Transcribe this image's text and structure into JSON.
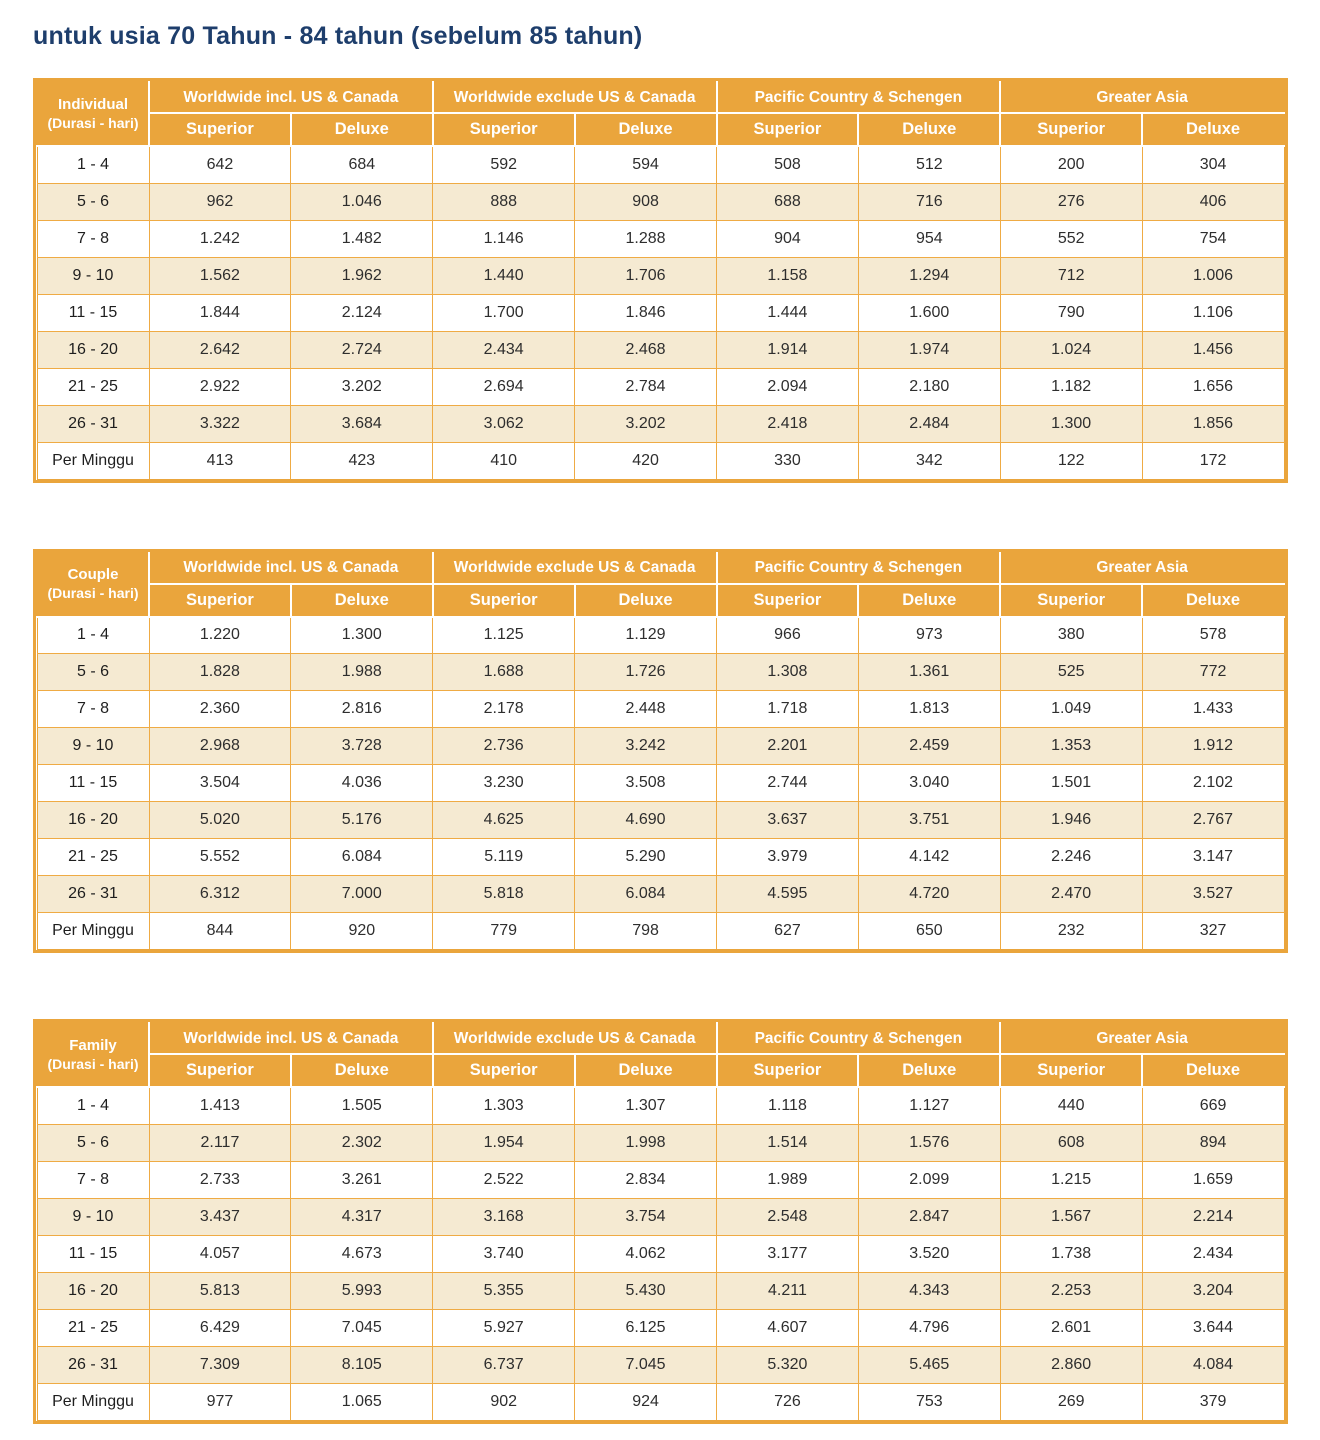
{
  "page": {
    "title": "untuk usia 70 Tahun - 84 tahun (sebelum 85 tahun)"
  },
  "colors": {
    "title_text": "#1E3E6C",
    "header_bg": "#EAA53C",
    "header_text": "#FFFFFF",
    "row_alt_bg": "#F5EAD2",
    "grid_border": "#EFAB44",
    "cell_text": "#2E2E2E"
  },
  "columns": {
    "regions": [
      "Worldwide incl. US & Canada",
      "Worldwide exclude US & Canada",
      "Pacific Country & Schengen",
      "Greater Asia"
    ],
    "tiers": [
      "Superior",
      "Deluxe"
    ]
  },
  "tables": [
    {
      "label": "Individual",
      "sublabel": "(Durasi - hari)",
      "rows": [
        {
          "duration": "1 - 4",
          "values": [
            "642",
            "684",
            "592",
            "594",
            "508",
            "512",
            "200",
            "304"
          ]
        },
        {
          "duration": "5 - 6",
          "values": [
            "962",
            "1.046",
            "888",
            "908",
            "688",
            "716",
            "276",
            "406"
          ]
        },
        {
          "duration": "7 - 8",
          "values": [
            "1.242",
            "1.482",
            "1.146",
            "1.288",
            "904",
            "954",
            "552",
            "754"
          ]
        },
        {
          "duration": "9 - 10",
          "values": [
            "1.562",
            "1.962",
            "1.440",
            "1.706",
            "1.158",
            "1.294",
            "712",
            "1.006"
          ]
        },
        {
          "duration": "11 - 15",
          "values": [
            "1.844",
            "2.124",
            "1.700",
            "1.846",
            "1.444",
            "1.600",
            "790",
            "1.106"
          ]
        },
        {
          "duration": "16 - 20",
          "values": [
            "2.642",
            "2.724",
            "2.434",
            "2.468",
            "1.914",
            "1.974",
            "1.024",
            "1.456"
          ]
        },
        {
          "duration": "21 - 25",
          "values": [
            "2.922",
            "3.202",
            "2.694",
            "2.784",
            "2.094",
            "2.180",
            "1.182",
            "1.656"
          ]
        },
        {
          "duration": "26 - 31",
          "values": [
            "3.322",
            "3.684",
            "3.062",
            "3.202",
            "2.418",
            "2.484",
            "1.300",
            "1.856"
          ]
        },
        {
          "duration": "Per Minggu",
          "values": [
            "413",
            "423",
            "410",
            "420",
            "330",
            "342",
            "122",
            "172"
          ]
        }
      ]
    },
    {
      "label": "Couple",
      "sublabel": "(Durasi - hari)",
      "rows": [
        {
          "duration": "1 - 4",
          "values": [
            "1.220",
            "1.300",
            "1.125",
            "1.129",
            "966",
            "973",
            "380",
            "578"
          ]
        },
        {
          "duration": "5 - 6",
          "values": [
            "1.828",
            "1.988",
            "1.688",
            "1.726",
            "1.308",
            "1.361",
            "525",
            "772"
          ]
        },
        {
          "duration": "7 - 8",
          "values": [
            "2.360",
            "2.816",
            "2.178",
            "2.448",
            "1.718",
            "1.813",
            "1.049",
            "1.433"
          ]
        },
        {
          "duration": "9 - 10",
          "values": [
            "2.968",
            "3.728",
            "2.736",
            "3.242",
            "2.201",
            "2.459",
            "1.353",
            "1.912"
          ]
        },
        {
          "duration": "11 - 15",
          "values": [
            "3.504",
            "4.036",
            "3.230",
            "3.508",
            "2.744",
            "3.040",
            "1.501",
            "2.102"
          ]
        },
        {
          "duration": "16 - 20",
          "values": [
            "5.020",
            "5.176",
            "4.625",
            "4.690",
            "3.637",
            "3.751",
            "1.946",
            "2.767"
          ]
        },
        {
          "duration": "21 - 25",
          "values": [
            "5.552",
            "6.084",
            "5.119",
            "5.290",
            "3.979",
            "4.142",
            "2.246",
            "3.147"
          ]
        },
        {
          "duration": "26 - 31",
          "values": [
            "6.312",
            "7.000",
            "5.818",
            "6.084",
            "4.595",
            "4.720",
            "2.470",
            "3.527"
          ]
        },
        {
          "duration": "Per Minggu",
          "values": [
            "844",
            "920",
            "779",
            "798",
            "627",
            "650",
            "232",
            "327"
          ]
        }
      ]
    },
    {
      "label": "Family",
      "sublabel": "(Durasi - hari)",
      "rows": [
        {
          "duration": "1 - 4",
          "values": [
            "1.413",
            "1.505",
            "1.303",
            "1.307",
            "1.118",
            "1.127",
            "440",
            "669"
          ]
        },
        {
          "duration": "5 - 6",
          "values": [
            "2.117",
            "2.302",
            "1.954",
            "1.998",
            "1.514",
            "1.576",
            "608",
            "894"
          ]
        },
        {
          "duration": "7 - 8",
          "values": [
            "2.733",
            "3.261",
            "2.522",
            "2.834",
            "1.989",
            "2.099",
            "1.215",
            "1.659"
          ]
        },
        {
          "duration": "9 - 10",
          "values": [
            "3.437",
            "4.317",
            "3.168",
            "3.754",
            "2.548",
            "2.847",
            "1.567",
            "2.214"
          ]
        },
        {
          "duration": "11 - 15",
          "values": [
            "4.057",
            "4.673",
            "3.740",
            "4.062",
            "3.177",
            "3.520",
            "1.738",
            "2.434"
          ]
        },
        {
          "duration": "16 - 20",
          "values": [
            "5.813",
            "5.993",
            "5.355",
            "5.430",
            "4.211",
            "4.343",
            "2.253",
            "3.204"
          ]
        },
        {
          "duration": "21 - 25",
          "values": [
            "6.429",
            "7.045",
            "5.927",
            "6.125",
            "4.607",
            "4.796",
            "2.601",
            "3.644"
          ]
        },
        {
          "duration": "26 - 31",
          "values": [
            "7.309",
            "8.105",
            "6.737",
            "7.045",
            "5.320",
            "5.465",
            "2.860",
            "4.084"
          ]
        },
        {
          "duration": "Per Minggu",
          "values": [
            "977",
            "1.065",
            "902",
            "924",
            "726",
            "753",
            "269",
            "379"
          ]
        }
      ]
    }
  ]
}
